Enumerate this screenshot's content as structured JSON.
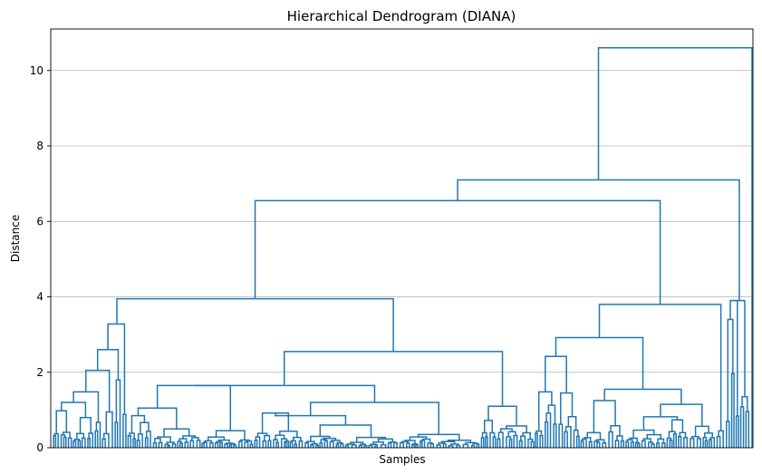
{
  "chart_data": {
    "type": "dendrogram",
    "title": "Hierarchical Dendrogram (DIANA)",
    "xlabel": "Samples",
    "ylabel": "Distance",
    "ylim": [
      0,
      11.1
    ],
    "yticks": [
      0,
      2,
      4,
      6,
      8,
      10
    ],
    "grid": "y",
    "line_color": "#1f77b4",
    "x_tick_labels": "hidden",
    "leaf_count": 156,
    "merges": [
      {
        "node": "root",
        "height": 10.6,
        "children": [
          "A",
          "B"
        ]
      },
      {
        "node": "A",
        "height": 7.1,
        "children": [
          "A1",
          "A2"
        ]
      },
      {
        "node": "A1",
        "height": 6.55,
        "children": [
          "L",
          "R"
        ]
      },
      {
        "node": "L",
        "height": 3.95,
        "children": [
          "L1",
          "L2"
        ]
      },
      {
        "node": "L1",
        "height": 3.28,
        "children": [
          "L1a",
          "L1b"
        ]
      },
      {
        "node": "L1a",
        "height": 2.6,
        "children": [
          "L1a1",
          "L1a2"
        ]
      },
      {
        "node": "L1a1",
        "height": 2.05,
        "children": [
          "L1a1a",
          "L1a1b"
        ]
      },
      {
        "node": "L1a1a",
        "height": 1.48,
        "children": [
          "L1a1a1",
          "L1a1a2"
        ]
      },
      {
        "node": "L1a1a1",
        "height": 1.2,
        "children": [
          "L1a1a1a",
          "L1a1a1b"
        ]
      },
      {
        "node": "L1a1a1a",
        "height": 0.98,
        "children": []
      },
      {
        "node": "L1a1b",
        "height": 0.95,
        "children": []
      },
      {
        "node": "L1a2",
        "height": 1.8,
        "children": []
      },
      {
        "node": "L2",
        "height": 2.55,
        "children": [
          "L2a",
          "L2b"
        ]
      },
      {
        "node": "L2a",
        "height": 1.65,
        "children": [
          "L2a1",
          "L2a2"
        ]
      },
      {
        "node": "L2a1",
        "height": 1.05,
        "children": [
          "L2a1a",
          "L2a1b"
        ]
      },
      {
        "node": "L2a1b",
        "height": 0.85,
        "children": []
      },
      {
        "node": "L2a1c",
        "height": 0.5,
        "children": []
      },
      {
        "node": "L2a2",
        "height": 0.92,
        "children": [
          "L2a2a",
          "L2a2b"
        ]
      },
      {
        "node": "L2a2b",
        "height": 0.6,
        "children": []
      },
      {
        "node": "L2a2c",
        "height": 0.35,
        "children": []
      },
      {
        "node": "L2b",
        "height": 1.1,
        "children": [
          "L2b1",
          "L2b2"
        ]
      },
      {
        "node": "R",
        "height": 3.8,
        "children": [
          "R1",
          "R2"
        ]
      },
      {
        "node": "R1",
        "height": 2.92,
        "children": [
          "R1a",
          "R1b"
        ]
      },
      {
        "node": "R1a",
        "height": 2.42,
        "children": [
          "R1a1",
          "R1a2"
        ]
      },
      {
        "node": "R1a1",
        "height": 1.48,
        "children": []
      },
      {
        "node": "R1a2",
        "height": 1.45,
        "children": []
      },
      {
        "node": "R1b",
        "height": 1.55,
        "children": [
          "R1b1",
          "R1b2"
        ]
      },
      {
        "node": "R1b1",
        "height": 1.25,
        "children": []
      },
      {
        "node": "R1b2",
        "height": 1.15,
        "children": []
      },
      {
        "node": "R1b2a",
        "height": 0.82,
        "children": []
      },
      {
        "node": "A2",
        "height": 3.9,
        "children": []
      },
      {
        "node": "A2a",
        "height": 3.4,
        "children": []
      },
      {
        "node": "B",
        "height": 0,
        "children": []
      }
    ]
  }
}
